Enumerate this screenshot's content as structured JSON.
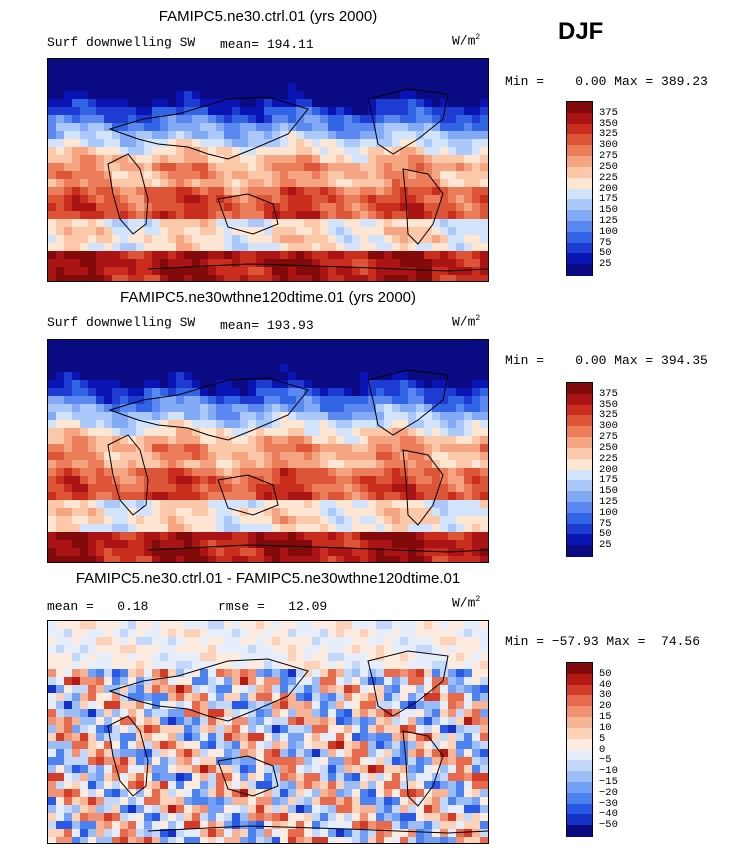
{
  "season": "DJF",
  "chart_data": [
    {
      "type": "heatmap",
      "title": "FAMIPC5.ne30.ctrl.01 (yrs 2000)",
      "variable": "Surf downwelling SW",
      "stat_label": "mean=",
      "stat_value": "194.11",
      "units_base": "W/m",
      "units_exp": "2",
      "range_text": "Min =    0.00 Max = 389.23",
      "min": 0.0,
      "max": 389.23,
      "colorbar_levels": [
        375,
        350,
        325,
        300,
        275,
        250,
        225,
        200,
        175,
        150,
        125,
        100,
        75,
        50,
        25
      ]
    },
    {
      "type": "heatmap",
      "title": "FAMIPC5.ne30wthne120dtime.01 (yrs 2000)",
      "variable": "Surf downwelling SW",
      "stat_label": "mean=",
      "stat_value": "193.93",
      "units_base": "W/m",
      "units_exp": "2",
      "range_text": "Min =    0.00 Max = 394.35",
      "min": 0.0,
      "max": 394.35,
      "colorbar_levels": [
        375,
        350,
        325,
        300,
        275,
        250,
        225,
        200,
        175,
        150,
        125,
        100,
        75,
        50,
        25
      ]
    },
    {
      "type": "heatmap",
      "title": "FAMIPC5.ne30.ctrl.01 - FAMIPC5.ne30wthne120dtime.01",
      "mean_label": "mean =",
      "mean_value": "0.18",
      "rmse_label": "rmse =",
      "rmse_value": "12.09",
      "units_base": "W/m",
      "units_exp": "2",
      "range_text": "Min = −57.93 Max =  74.56",
      "min": -57.93,
      "max": 74.56,
      "colorbar_levels": [
        "50",
        "40",
        "30",
        "20",
        "15",
        "10",
        "5",
        "0",
        "−5",
        "−10",
        "−15",
        "−20",
        "−30",
        "−40",
        "−50"
      ]
    }
  ],
  "colors": {
    "abs_scale": [
      "#0a0a82",
      "#0a14b4",
      "#1e3cd2",
      "#3264e6",
      "#5a87f0",
      "#82aaf5",
      "#aac8fa",
      "#d2e4fc",
      "#ffe6d2",
      "#fcc8aa",
      "#f5a582",
      "#eb7d5a",
      "#dc5537",
      "#c82d1e",
      "#aa1414",
      "#820a0a"
    ],
    "diff_scale": [
      "#0a0a82",
      "#1432c8",
      "#2858e6",
      "#4b82f0",
      "#73a0f5",
      "#9bbef8",
      "#c3d8fa",
      "#e6eefc",
      "#fdebe0",
      "#fcd2b9",
      "#f8b496",
      "#f09173",
      "#e66a4b",
      "#d23c28",
      "#b41914",
      "#820a0a"
    ]
  }
}
